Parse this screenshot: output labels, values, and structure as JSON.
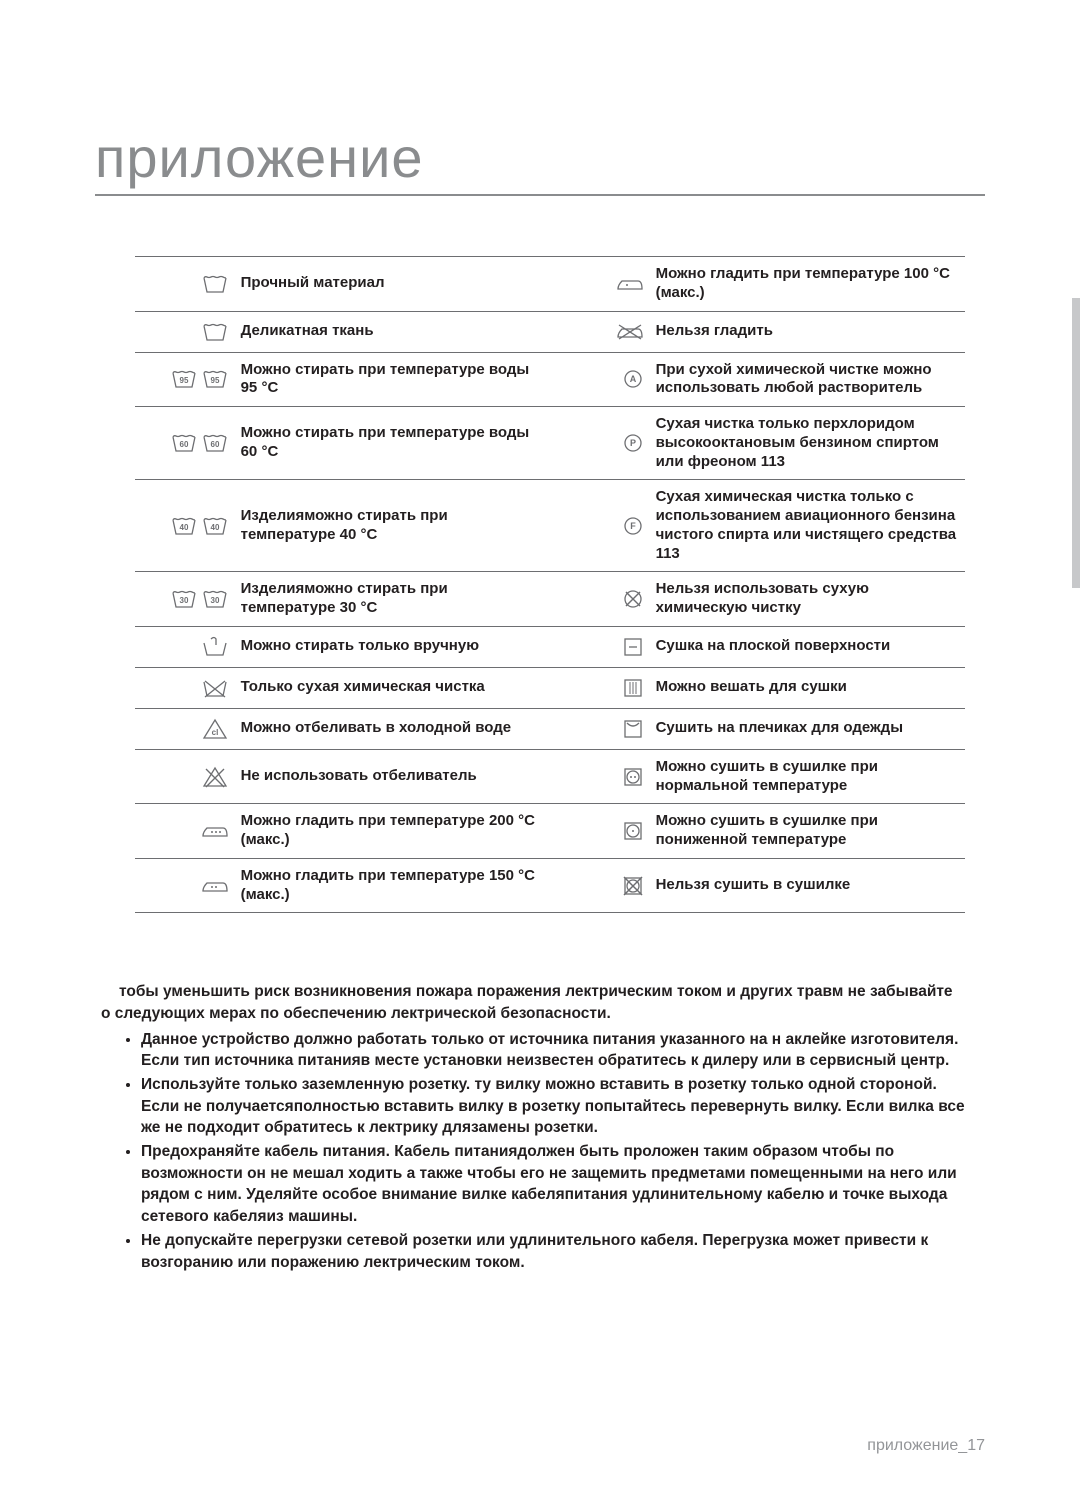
{
  "title": "приложение",
  "table": {
    "border_color": "#6d6e71",
    "font_size": 15,
    "rows": [
      {
        "l_icon": "tub",
        "l": "Прочный материал",
        "r_icon": "iron1",
        "r": "Можно гладить при температуре 100 °C (макс.)"
      },
      {
        "l_icon": "tub",
        "l": "Деликатная ткань",
        "r_icon": "ironx",
        "r": "Нельзя гладить"
      },
      {
        "l_icon": "tub95",
        "l": "Можно стирать при температуре воды 95 °C",
        "r_icon": "circA",
        "r": "При сухой химической чистке можно использовать любой растворитель"
      },
      {
        "l_icon": "tub60",
        "l": "Можно стирать при температуре воды 60 °C",
        "r_icon": "circP",
        "r": "Сухая чистка только перхлоридом высокооктановым бензином спиртом или фреоном 113"
      },
      {
        "l_icon": "tub40",
        "l": "Изделияможно стирать при температуре 40 °C",
        "r_icon": "circF",
        "r": "Сухая химическая чистка только с использованием авиационного бензина чистого спирта или чистящего средства 113"
      },
      {
        "l_icon": "tub30",
        "l": "Изделияможно стирать при температуре 30 °C",
        "r_icon": "circX",
        "r": "Нельзя использовать сухую химическую чистку"
      },
      {
        "l_icon": "hand",
        "l": "Можно стирать только вручную",
        "r_icon": "flat",
        "r": "Сушка на плоской поверхности"
      },
      {
        "l_icon": "tubx",
        "l": "Только сухая химическая чистка",
        "r_icon": "drip",
        "r": "Можно вешать для сушки"
      },
      {
        "l_icon": "bleach",
        "l": "Можно отбеливать в холодной воде",
        "r_icon": "hang",
        "r": "Сушить на плечиках для одежды"
      },
      {
        "l_icon": "bleachx",
        "l": "Не использовать отбеливатель",
        "r_icon": "dry2",
        "r": "Можно сушить в сушилке при нормальной температуре"
      },
      {
        "l_icon": "iron3",
        "l": "Можно гладить при температуре 200 °C (макс.)",
        "r_icon": "dry1",
        "r": "Можно сушить в сушилке при пониженной температуре"
      },
      {
        "l_icon": "iron2",
        "l": "Можно гладить при температуре 150 °C (макс.)",
        "r_icon": "dryx",
        "r": "Нельзя сушить в сушилке"
      }
    ]
  },
  "safety": {
    "intro": "тобы уменьшить риск возникновения пожара поражения лектрическим током и других травм не забывайте о следующих мерах по обеспечению лектрической безопасности.",
    "items": [
      "Данное устройство должно работать только от источника питания указанного на н аклейке изготовителя. Если тип источника питанияв месте установки неизвестен обратитесь к дилеру или в сервисный центр.",
      "Используйте только заземленную розетку. ту вилку можно вставить в розетку только одной стороной. Если не получаетсяполностью вставить вилку в розетку попытайтесь перевернуть вилку. Если вилка все же не подходит обратитесь к лектрику длязамены розетки.",
      "Предохраняйте кабель питания. Кабель питаниядолжен быть проложен таким образом чтобы по возможности он не мешал ходить а также чтобы его не защемить предметами помещенными на него или рядом с ним. Уделяйте особое внимание вилке кабеляпитания удлинительному кабелю и точке выхода сетевого кабеляиз машины.",
      "Не допускайте перегрузки сетевой розетки или удлинительного кабеля. Перегрузка может привести к возгоранию или поражению лектрическим током."
    ]
  },
  "footer": {
    "label": "приложение",
    "sep": "_",
    "page": "17"
  },
  "colors": {
    "title": "#8a8c8e",
    "text": "#231f20",
    "icon": "#6d6e71",
    "sidebar": "#c7c8ca"
  }
}
